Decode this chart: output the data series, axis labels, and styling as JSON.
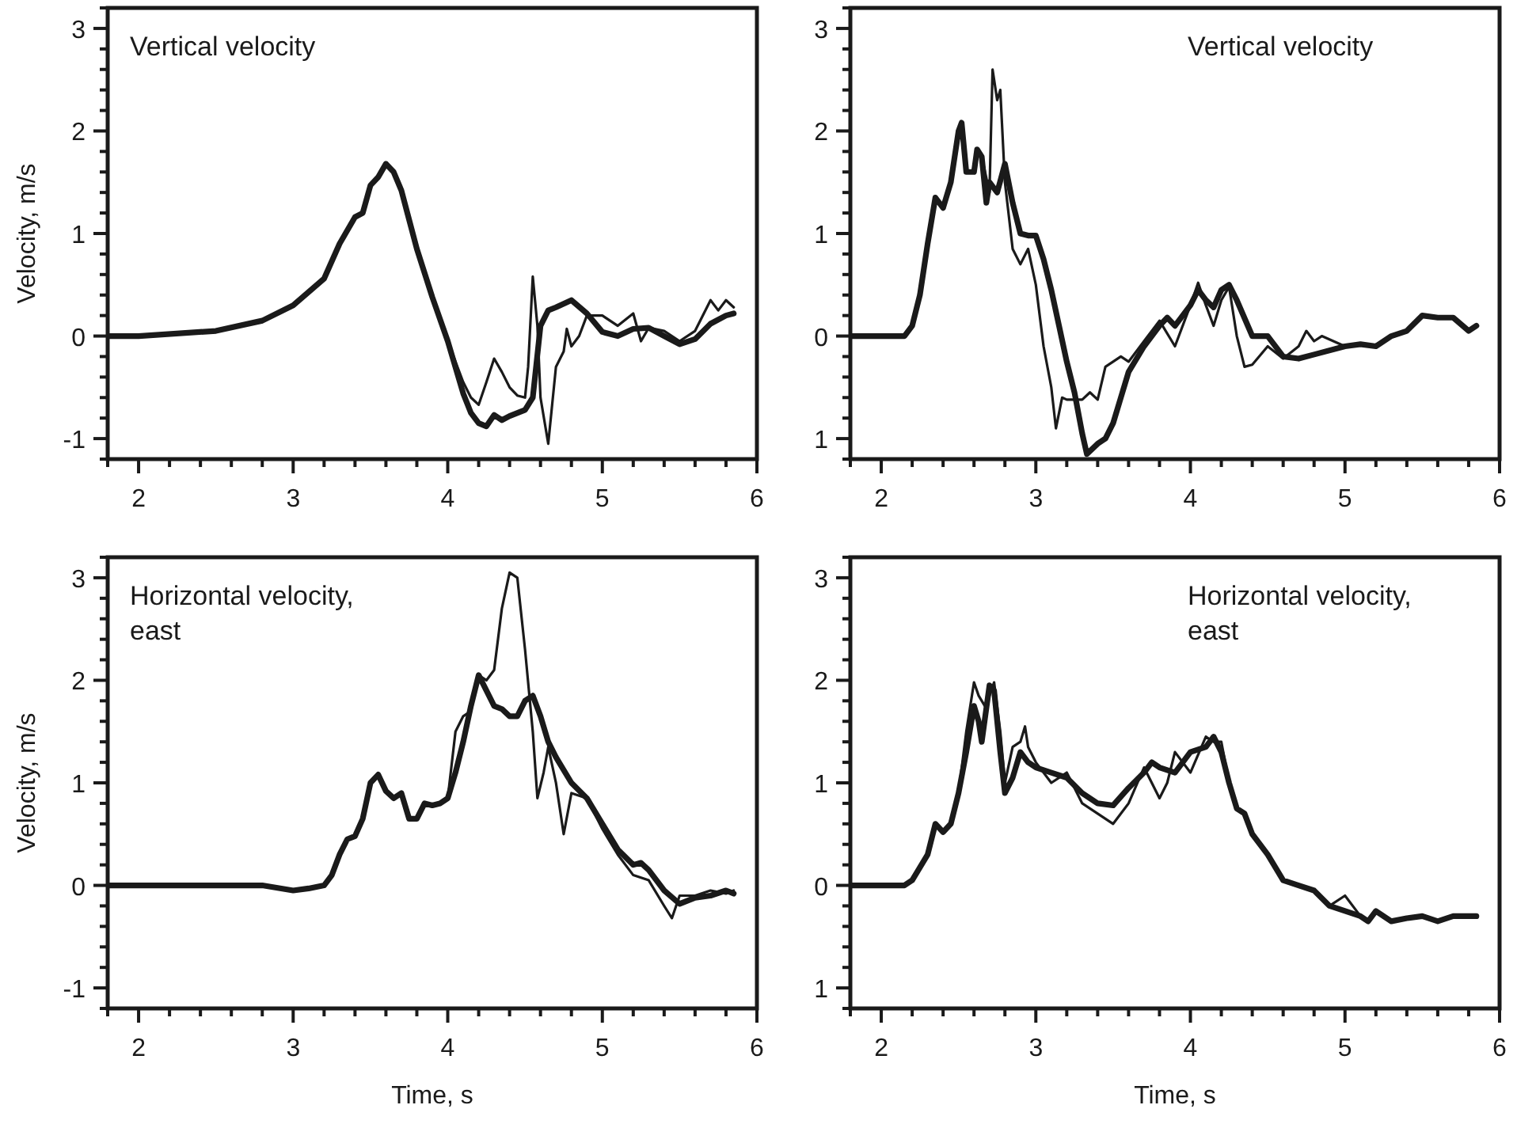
{
  "chart_data": [
    {
      "type": "line",
      "annotations": [
        "Vertical velocity"
      ],
      "ylabel": "Velocity, m/s",
      "xlim": [
        1.8,
        6
      ],
      "ylim": [
        -1.2,
        3.2
      ],
      "xticks": [
        {
          "value": 1.8,
          "label": null
        },
        2,
        {
          "value": 2.2,
          "label": null
        },
        {
          "value": 2.4,
          "label": null
        },
        {
          "value": 2.6,
          "label": null
        },
        {
          "value": 2.8,
          "label": null
        },
        3,
        {
          "value": 3.2,
          "label": null
        },
        {
          "value": 3.4,
          "label": null
        },
        {
          "value": 3.6,
          "label": null
        },
        {
          "value": 3.8,
          "label": null
        },
        4,
        {
          "value": 4.2,
          "label": null
        },
        {
          "value": 4.4,
          "label": null
        },
        {
          "value": 4.6,
          "label": null
        },
        {
          "value": 4.8,
          "label": null
        },
        5,
        {
          "value": 5.2,
          "label": null
        },
        {
          "value": 5.4,
          "label": null
        },
        {
          "value": 5.6,
          "label": null
        },
        {
          "value": 5.8,
          "label": null
        },
        6
      ],
      "yticks": [
        {
          "value": -1.2,
          "label": null
        },
        -1,
        {
          "value": -0.8,
          "label": null
        },
        {
          "value": -0.6,
          "label": null
        },
        {
          "value": -0.4,
          "label": null
        },
        {
          "value": -0.2,
          "label": null
        },
        0,
        {
          "value": 0.2,
          "label": null
        },
        {
          "value": 0.4,
          "label": null
        },
        {
          "value": 0.6,
          "label": null
        },
        {
          "value": 0.8,
          "label": null
        },
        1,
        {
          "value": 1.2,
          "label": null
        },
        {
          "value": 1.4,
          "label": null
        },
        {
          "value": 1.6,
          "label": null
        },
        {
          "value": 1.8,
          "label": null
        },
        2,
        {
          "value": 2.2,
          "label": null
        },
        {
          "value": 2.4,
          "label": null
        },
        {
          "value": 2.6,
          "label": null
        },
        {
          "value": 2.8,
          "label": null
        },
        3,
        {
          "value": 3.2,
          "label": null
        }
      ],
      "series": [
        {
          "color": "#1a1a1a",
          "x": [
            1.8,
            2.0,
            2.5,
            2.8,
            3.0,
            3.2,
            3.3,
            3.4,
            3.45,
            3.5,
            3.55,
            3.6,
            3.65,
            3.7,
            3.8,
            3.9,
            4.0,
            4.1,
            4.15,
            4.2,
            4.25,
            4.3,
            4.35,
            4.4,
            4.45,
            4.5,
            4.52,
            4.55,
            4.58,
            4.6,
            4.65,
            4.7,
            4.75,
            4.77,
            4.8,
            4.85,
            4.9,
            5.0,
            5.1,
            5.2,
            5.25,
            5.3,
            5.4,
            5.5,
            5.6,
            5.7,
            5.75,
            5.8,
            5.85
          ],
          "values": [
            0,
            0,
            0.05,
            0.15,
            0.3,
            0.56,
            0.9,
            1.16,
            1.2,
            1.47,
            1.55,
            1.68,
            1.6,
            1.42,
            0.85,
            0.38,
            -0.05,
            -0.45,
            -0.6,
            -0.67,
            -0.45,
            -0.22,
            -0.35,
            -0.5,
            -0.58,
            -0.6,
            -0.3,
            0.58,
            0.1,
            -0.6,
            -1.05,
            -0.3,
            -0.15,
            0.07,
            -0.1,
            0,
            0.2,
            0.2,
            0.1,
            0.22,
            -0.05,
            0.08,
            0.05,
            -0.05,
            0.05,
            0.35,
            0.25,
            0.35,
            0.28
          ]
        },
        {
          "color": "#1a1a1a",
          "x": [
            1.8,
            2.0,
            2.5,
            2.8,
            3.0,
            3.2,
            3.3,
            3.4,
            3.45,
            3.5,
            3.55,
            3.6,
            3.65,
            3.7,
            3.8,
            3.9,
            4.0,
            4.1,
            4.15,
            4.2,
            4.25,
            4.3,
            4.35,
            4.4,
            4.5,
            4.55,
            4.6,
            4.65,
            4.7,
            4.8,
            4.9,
            5.0,
            5.1,
            5.2,
            5.3,
            5.4,
            5.5,
            5.6,
            5.7,
            5.8,
            5.85
          ],
          "values": [
            0,
            0,
            0.05,
            0.15,
            0.3,
            0.56,
            0.9,
            1.16,
            1.2,
            1.47,
            1.55,
            1.68,
            1.6,
            1.42,
            0.85,
            0.38,
            -0.05,
            -0.56,
            -0.75,
            -0.85,
            -0.88,
            -0.77,
            -0.82,
            -0.78,
            -0.72,
            -0.6,
            0.1,
            0.25,
            0.28,
            0.35,
            0.22,
            0.04,
            0,
            0.07,
            0.08,
            0,
            -0.08,
            -0.03,
            0.12,
            0.2,
            0.22
          ]
        }
      ]
    },
    {
      "type": "line",
      "annotations": [
        "Vertical velocity"
      ],
      "xlim": [
        1.8,
        6
      ],
      "ylim": [
        -1.2,
        3.2
      ],
      "xticks": [
        {
          "value": 1.8,
          "label": null
        },
        2,
        {
          "value": 2.2,
          "label": null
        },
        {
          "value": 2.4,
          "label": null
        },
        {
          "value": 2.6,
          "label": null
        },
        {
          "value": 2.8,
          "label": null
        },
        3,
        {
          "value": 3.2,
          "label": null
        },
        {
          "value": 3.4,
          "label": null
        },
        {
          "value": 3.6,
          "label": null
        },
        {
          "value": 3.8,
          "label": null
        },
        4,
        {
          "value": 4.2,
          "label": null
        },
        {
          "value": 4.4,
          "label": null
        },
        {
          "value": 4.6,
          "label": null
        },
        {
          "value": 4.8,
          "label": null
        },
        5,
        {
          "value": 5.2,
          "label": null
        },
        {
          "value": 5.4,
          "label": null
        },
        {
          "value": 5.6,
          "label": null
        },
        {
          "value": 5.8,
          "label": null
        },
        6
      ],
      "yticks": [
        {
          "value": -1.2,
          "label": null
        },
        {
          "value": -1,
          "label": "1"
        },
        {
          "value": -0.8,
          "label": null
        },
        {
          "value": -0.6,
          "label": null
        },
        {
          "value": -0.4,
          "label": null
        },
        {
          "value": -0.2,
          "label": null
        },
        0,
        {
          "value": 0.2,
          "label": null
        },
        {
          "value": 0.4,
          "label": null
        },
        {
          "value": 0.6,
          "label": null
        },
        {
          "value": 0.8,
          "label": null
        },
        1,
        {
          "value": 1.2,
          "label": null
        },
        {
          "value": 1.4,
          "label": null
        },
        {
          "value": 1.6,
          "label": null
        },
        {
          "value": 1.8,
          "label": null
        },
        2,
        {
          "value": 2.2,
          "label": null
        },
        {
          "value": 2.4,
          "label": null
        },
        {
          "value": 2.6,
          "label": null
        },
        {
          "value": 2.8,
          "label": null
        },
        3,
        {
          "value": 3.2,
          "label": null
        }
      ],
      "series": [
        {
          "color": "#1a1a1a",
          "x": [
            1.8,
            2.15,
            2.2,
            2.25,
            2.3,
            2.35,
            2.4,
            2.45,
            2.5,
            2.52,
            2.55,
            2.6,
            2.62,
            2.65,
            2.7,
            2.72,
            2.75,
            2.77,
            2.8,
            2.85,
            2.9,
            2.95,
            3.0,
            3.05,
            3.1,
            3.13,
            3.17,
            3.2,
            3.3,
            3.35,
            3.4,
            3.45,
            3.5,
            3.55,
            3.6,
            3.7,
            3.8,
            3.9,
            4.0,
            4.05,
            4.1,
            4.15,
            4.2,
            4.25,
            4.3,
            4.35,
            4.4,
            4.5,
            4.6,
            4.7,
            4.75,
            4.8,
            4.85,
            5.0,
            5.1,
            5.2,
            5.3,
            5.4,
            5.5,
            5.6,
            5.7,
            5.8,
            5.85
          ],
          "values": [
            0,
            0,
            0.1,
            0.4,
            0.9,
            1.35,
            1.25,
            1.5,
            2.0,
            2.08,
            1.6,
            1.6,
            1.82,
            1.75,
            1.4,
            2.6,
            2.3,
            2.4,
            1.5,
            0.85,
            0.7,
            0.85,
            0.5,
            -0.1,
            -0.5,
            -0.9,
            -0.6,
            -0.62,
            -0.62,
            -0.55,
            -0.62,
            -0.3,
            -0.25,
            -0.2,
            -0.25,
            -0.05,
            0.15,
            -0.1,
            0.3,
            0.52,
            0.3,
            0.1,
            0.35,
            0.48,
            0,
            -0.3,
            -0.28,
            -0.1,
            -0.22,
            -0.1,
            0.05,
            -0.05,
            0,
            -0.1,
            -0.08,
            -0.1,
            0,
            0.05,
            0.2,
            0.18,
            0.18,
            0.05,
            0.1
          ]
        },
        {
          "color": "#1a1a1a",
          "x": [
            1.8,
            2.15,
            2.2,
            2.25,
            2.3,
            2.35,
            2.4,
            2.45,
            2.5,
            2.52,
            2.55,
            2.6,
            2.62,
            2.65,
            2.68,
            2.7,
            2.75,
            2.8,
            2.85,
            2.9,
            2.95,
            3.0,
            3.05,
            3.1,
            3.15,
            3.2,
            3.25,
            3.3,
            3.33,
            3.4,
            3.45,
            3.5,
            3.55,
            3.6,
            3.7,
            3.8,
            3.85,
            3.9,
            4.0,
            4.05,
            4.1,
            4.15,
            4.2,
            4.25,
            4.3,
            4.4,
            4.5,
            4.6,
            4.7,
            4.8,
            5.0,
            5.1,
            5.2,
            5.3,
            5.4,
            5.5,
            5.6,
            5.7,
            5.8,
            5.85
          ],
          "values": [
            0,
            0,
            0.1,
            0.4,
            0.9,
            1.35,
            1.25,
            1.5,
            2.0,
            2.08,
            1.6,
            1.6,
            1.82,
            1.75,
            1.3,
            1.5,
            1.4,
            1.68,
            1.3,
            1.0,
            0.98,
            0.98,
            0.75,
            0.45,
            0.1,
            -0.25,
            -0.55,
            -0.95,
            -1.15,
            -1.05,
            -1.0,
            -0.85,
            -0.6,
            -0.35,
            -0.1,
            0.1,
            0.18,
            0.1,
            0.3,
            0.45,
            0.35,
            0.28,
            0.45,
            0.5,
            0.35,
            0,
            0,
            -0.2,
            -0.22,
            -0.18,
            -0.1,
            -0.08,
            -0.1,
            0,
            0.05,
            0.2,
            0.18,
            0.18,
            0.05,
            0.1
          ]
        }
      ]
    },
    {
      "type": "line",
      "annotations": [
        "Horizontal velocity,\neast"
      ],
      "ylabel": "Velocity, m/s",
      "xlabel": "Time, s",
      "xlim": [
        1.8,
        6
      ],
      "ylim": [
        -1.2,
        3.2
      ],
      "xticks": [
        {
          "value": 1.8,
          "label": null
        },
        2,
        {
          "value": 2.2,
          "label": null
        },
        {
          "value": 2.4,
          "label": null
        },
        {
          "value": 2.6,
          "label": null
        },
        {
          "value": 2.8,
          "label": null
        },
        3,
        {
          "value": 3.2,
          "label": null
        },
        {
          "value": 3.4,
          "label": null
        },
        {
          "value": 3.6,
          "label": null
        },
        {
          "value": 3.8,
          "label": null
        },
        4,
        {
          "value": 4.2,
          "label": null
        },
        {
          "value": 4.4,
          "label": null
        },
        {
          "value": 4.6,
          "label": null
        },
        {
          "value": 4.8,
          "label": null
        },
        5,
        {
          "value": 5.2,
          "label": null
        },
        {
          "value": 5.4,
          "label": null
        },
        {
          "value": 5.6,
          "label": null
        },
        {
          "value": 5.8,
          "label": null
        },
        6
      ],
      "yticks": [
        {
          "value": -1.2,
          "label": null
        },
        -1,
        {
          "value": -0.8,
          "label": null
        },
        {
          "value": -0.6,
          "label": null
        },
        {
          "value": -0.4,
          "label": null
        },
        {
          "value": -0.2,
          "label": null
        },
        0,
        {
          "value": 0.2,
          "label": null
        },
        {
          "value": 0.4,
          "label": null
        },
        {
          "value": 0.6,
          "label": null
        },
        {
          "value": 0.8,
          "label": null
        },
        1,
        {
          "value": 1.2,
          "label": null
        },
        {
          "value": 1.4,
          "label": null
        },
        {
          "value": 1.6,
          "label": null
        },
        {
          "value": 1.8,
          "label": null
        },
        2,
        {
          "value": 2.2,
          "label": null
        },
        {
          "value": 2.4,
          "label": null
        },
        {
          "value": 2.6,
          "label": null
        },
        {
          "value": 2.8,
          "label": null
        },
        3,
        {
          "value": 3.2,
          "label": null
        }
      ],
      "series": [
        {
          "color": "#1a1a1a",
          "x": [
            1.8,
            2.8,
            3.0,
            3.1,
            3.2,
            3.25,
            3.3,
            3.35,
            3.4,
            3.45,
            3.5,
            3.55,
            3.6,
            3.65,
            3.7,
            3.75,
            3.8,
            3.85,
            3.9,
            3.95,
            4.0,
            4.05,
            4.1,
            4.15,
            4.2,
            4.25,
            4.3,
            4.35,
            4.4,
            4.45,
            4.5,
            4.55,
            4.58,
            4.62,
            4.65,
            4.7,
            4.75,
            4.8,
            4.9,
            5.0,
            5.1,
            5.2,
            5.3,
            5.4,
            5.45,
            5.5,
            5.6,
            5.7,
            5.8,
            5.85
          ],
          "values": [
            0,
            0,
            -0.05,
            -0.03,
            0,
            0.1,
            0.3,
            0.45,
            0.48,
            0.65,
            1.0,
            1.08,
            0.92,
            0.85,
            0.9,
            0.65,
            0.65,
            0.8,
            0.78,
            0.8,
            0.85,
            1.5,
            1.65,
            1.7,
            2.05,
            2.0,
            2.1,
            2.7,
            3.05,
            3.0,
            2.3,
            1.5,
            0.85,
            1.1,
            1.35,
            1.0,
            0.5,
            0.9,
            0.85,
            0.55,
            0.3,
            0.1,
            0.05,
            -0.2,
            -0.32,
            -0.1,
            -0.1,
            -0.05,
            -0.08,
            -0.05
          ]
        },
        {
          "color": "#1a1a1a",
          "x": [
            1.8,
            2.8,
            3.0,
            3.1,
            3.2,
            3.25,
            3.3,
            3.35,
            3.4,
            3.45,
            3.5,
            3.55,
            3.6,
            3.65,
            3.7,
            3.75,
            3.8,
            3.85,
            3.9,
            3.95,
            4.0,
            4.05,
            4.1,
            4.15,
            4.2,
            4.25,
            4.3,
            4.35,
            4.4,
            4.45,
            4.5,
            4.55,
            4.6,
            4.65,
            4.7,
            4.8,
            4.9,
            5.0,
            5.1,
            5.2,
            5.25,
            5.3,
            5.4,
            5.5,
            5.6,
            5.7,
            5.8,
            5.85
          ],
          "values": [
            0,
            0,
            -0.05,
            -0.03,
            0,
            0.1,
            0.3,
            0.45,
            0.48,
            0.65,
            1.0,
            1.08,
            0.92,
            0.85,
            0.9,
            0.65,
            0.65,
            0.8,
            0.78,
            0.8,
            0.85,
            1.1,
            1.4,
            1.75,
            2.05,
            1.9,
            1.75,
            1.72,
            1.65,
            1.65,
            1.8,
            1.85,
            1.65,
            1.4,
            1.25,
            1.0,
            0.85,
            0.6,
            0.35,
            0.2,
            0.22,
            0.15,
            -0.05,
            -0.18,
            -0.12,
            -0.1,
            -0.05,
            -0.08
          ]
        }
      ]
    },
    {
      "type": "line",
      "annotations": [
        "Horizontal velocity,\neast"
      ],
      "xlabel": "Time, s",
      "xlim": [
        1.8,
        6
      ],
      "ylim": [
        -1.2,
        3.2
      ],
      "xticks": [
        {
          "value": 1.8,
          "label": null
        },
        2,
        {
          "value": 2.2,
          "label": null
        },
        {
          "value": 2.4,
          "label": null
        },
        {
          "value": 2.6,
          "label": null
        },
        {
          "value": 2.8,
          "label": null
        },
        3,
        {
          "value": 3.2,
          "label": null
        },
        {
          "value": 3.4,
          "label": null
        },
        {
          "value": 3.6,
          "label": null
        },
        {
          "value": 3.8,
          "label": null
        },
        4,
        {
          "value": 4.2,
          "label": null
        },
        {
          "value": 4.4,
          "label": null
        },
        {
          "value": 4.6,
          "label": null
        },
        {
          "value": 4.8,
          "label": null
        },
        5,
        {
          "value": 5.2,
          "label": null
        },
        {
          "value": 5.4,
          "label": null
        },
        {
          "value": 5.6,
          "label": null
        },
        {
          "value": 5.8,
          "label": null
        },
        6
      ],
      "yticks": [
        {
          "value": -1.2,
          "label": null
        },
        {
          "value": -1,
          "label": "1"
        },
        {
          "value": -0.8,
          "label": null
        },
        {
          "value": -0.6,
          "label": null
        },
        {
          "value": -0.4,
          "label": null
        },
        {
          "value": -0.2,
          "label": null
        },
        0,
        {
          "value": 0.2,
          "label": null
        },
        {
          "value": 0.4,
          "label": null
        },
        {
          "value": 0.6,
          "label": null
        },
        {
          "value": 0.8,
          "label": null
        },
        1,
        {
          "value": 1.2,
          "label": null
        },
        {
          "value": 1.4,
          "label": null
        },
        {
          "value": 1.6,
          "label": null
        },
        {
          "value": 1.8,
          "label": null
        },
        2,
        {
          "value": 2.2,
          "label": null
        },
        {
          "value": 2.4,
          "label": null
        },
        {
          "value": 2.6,
          "label": null
        },
        {
          "value": 2.8,
          "label": null
        },
        3,
        {
          "value": 3.2,
          "label": null
        }
      ],
      "series": [
        {
          "color": "#1a1a1a",
          "x": [
            1.8,
            2.15,
            2.2,
            2.3,
            2.35,
            2.4,
            2.45,
            2.5,
            2.55,
            2.6,
            2.63,
            2.67,
            2.7,
            2.73,
            2.77,
            2.8,
            2.85,
            2.9,
            2.93,
            2.95,
            3.0,
            3.1,
            3.2,
            3.3,
            3.4,
            3.5,
            3.6,
            3.7,
            3.75,
            3.8,
            3.85,
            3.9,
            4.0,
            4.1,
            4.15,
            4.2,
            4.25,
            4.3,
            4.35,
            4.4,
            4.5,
            4.6,
            4.7,
            4.8,
            4.9,
            5.0,
            5.1,
            5.15,
            5.2,
            5.3,
            5.4,
            5.5,
            5.6,
            5.7,
            5.85
          ],
          "values": [
            0,
            0,
            0.05,
            0.3,
            0.6,
            0.52,
            0.6,
            0.9,
            1.5,
            1.98,
            1.85,
            1.75,
            1.85,
            1.98,
            1.5,
            1.0,
            1.35,
            1.4,
            1.55,
            1.35,
            1.2,
            1.0,
            1.1,
            0.8,
            0.7,
            0.6,
            0.8,
            1.15,
            1.0,
            0.85,
            1.0,
            1.3,
            1.1,
            1.45,
            1.4,
            1.4,
            1.0,
            0.75,
            0.7,
            0.5,
            0.3,
            0.05,
            0,
            -0.05,
            -0.2,
            -0.1,
            -0.3,
            -0.35,
            -0.25,
            -0.35,
            -0.32,
            -0.3,
            -0.35,
            -0.3,
            -0.3
          ]
        },
        {
          "color": "#1a1a1a",
          "x": [
            1.8,
            2.15,
            2.2,
            2.3,
            2.35,
            2.4,
            2.45,
            2.5,
            2.55,
            2.6,
            2.63,
            2.65,
            2.7,
            2.73,
            2.77,
            2.8,
            2.85,
            2.9,
            2.95,
            3.0,
            3.1,
            3.2,
            3.3,
            3.4,
            3.5,
            3.6,
            3.7,
            3.75,
            3.8,
            3.9,
            4.0,
            4.1,
            4.15,
            4.2,
            4.25,
            4.3,
            4.35,
            4.4,
            4.5,
            4.6,
            4.7,
            4.8,
            4.9,
            5.0,
            5.1,
            5.15,
            5.2,
            5.3,
            5.4,
            5.5,
            5.6,
            5.7,
            5.85
          ],
          "values": [
            0,
            0,
            0.05,
            0.3,
            0.6,
            0.52,
            0.6,
            0.9,
            1.3,
            1.75,
            1.6,
            1.4,
            1.95,
            1.9,
            1.3,
            0.9,
            1.05,
            1.3,
            1.2,
            1.15,
            1.1,
            1.05,
            0.9,
            0.8,
            0.78,
            0.95,
            1.1,
            1.2,
            1.15,
            1.1,
            1.3,
            1.35,
            1.45,
            1.3,
            1.0,
            0.75,
            0.7,
            0.5,
            0.3,
            0.05,
            0,
            -0.05,
            -0.2,
            -0.25,
            -0.3,
            -0.35,
            -0.25,
            -0.35,
            -0.32,
            -0.3,
            -0.35,
            -0.3,
            -0.3
          ]
        }
      ]
    }
  ]
}
